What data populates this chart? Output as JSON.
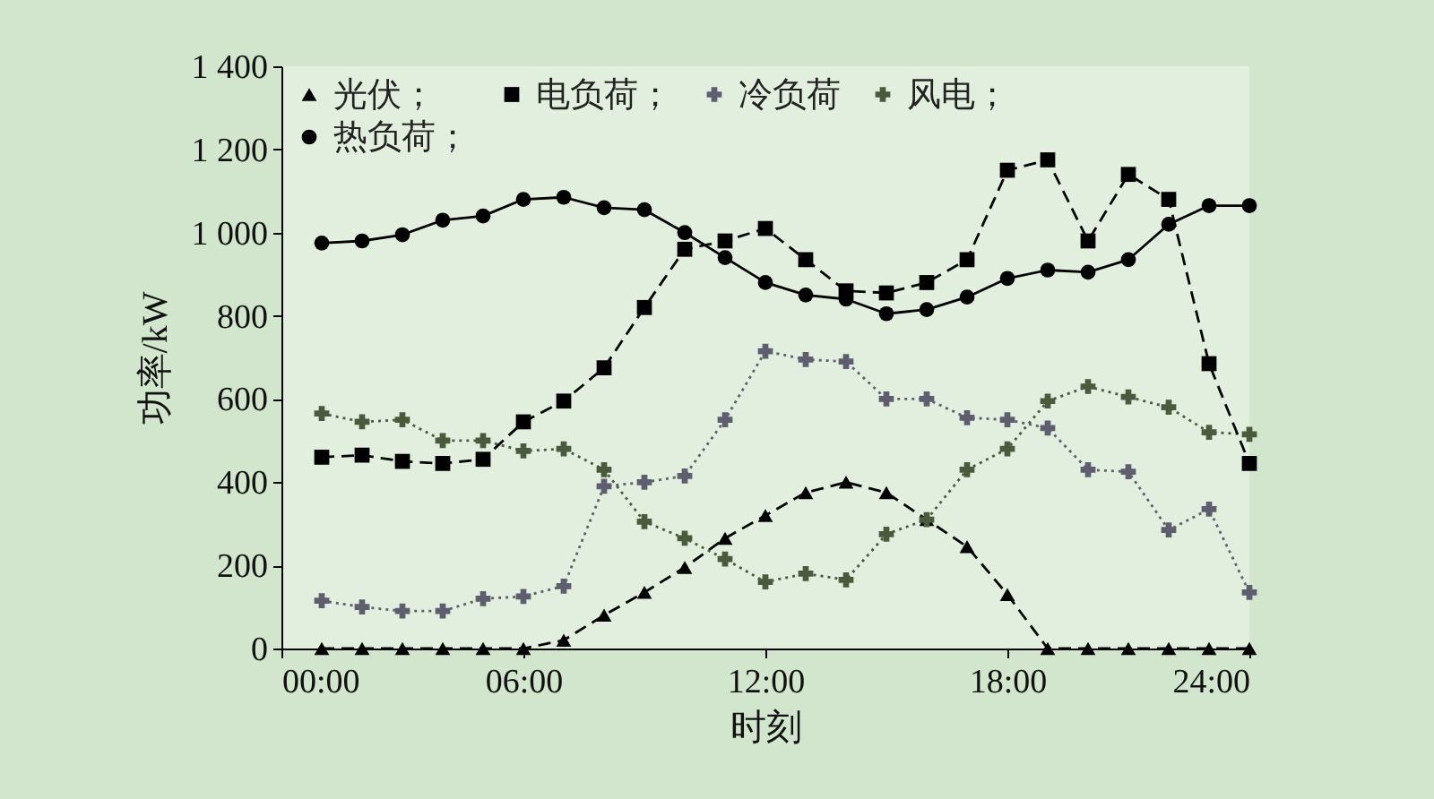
{
  "chart_data": {
    "type": "line",
    "xlabel": "时刻",
    "ylabel": "功率/kW",
    "x": [
      1,
      2,
      3,
      4,
      5,
      6,
      7,
      8,
      9,
      10,
      11,
      12,
      13,
      14,
      15,
      16,
      17,
      18,
      19,
      20,
      21,
      22,
      23,
      24
    ],
    "xlim": [
      0,
      24
    ],
    "xticks": [
      {
        "value": 0,
        "label": "00:00"
      },
      {
        "value": 6,
        "label": "06:00"
      },
      {
        "value": 12,
        "label": "12:00"
      },
      {
        "value": 18,
        "label": "18:00"
      },
      {
        "value": 24,
        "label": "24:00"
      }
    ],
    "ylim": [
      0,
      1400
    ],
    "yticks": [
      0,
      200,
      400,
      600,
      800,
      {
        "value": 1000,
        "label": "1 000"
      },
      {
        "value": 1200,
        "label": "1 200"
      },
      {
        "value": 1400,
        "label": "1 400"
      }
    ],
    "grid": false,
    "legend": "top left",
    "series": [
      {
        "name": "光伏；",
        "color": "#000000",
        "marker": "triangle",
        "line_style": "dashed",
        "values": [
          0,
          0,
          0,
          0,
          0,
          0,
          20,
          80,
          135,
          195,
          265,
          320,
          375,
          400,
          375,
          310,
          245,
          130,
          0,
          0,
          0,
          0,
          0,
          0
        ]
      },
      {
        "name": "风电；",
        "color": "#4a5a3c",
        "marker": "cross",
        "line_style": "dotted",
        "values": [
          565,
          545,
          550,
          500,
          500,
          475,
          480,
          430,
          305,
          265,
          215,
          160,
          180,
          165,
          275,
          310,
          430,
          480,
          595,
          630,
          605,
          580,
          520,
          515
        ]
      },
      {
        "name": "电负荷；",
        "color": "#000000",
        "marker": "square",
        "line_style": "dashed",
        "values": [
          460,
          465,
          450,
          445,
          455,
          545,
          595,
          675,
          820,
          960,
          980,
          1010,
          935,
          860,
          855,
          880,
          935,
          1150,
          1175,
          980,
          1140,
          1080,
          685,
          445
        ]
      },
      {
        "name": "热负荷；",
        "color": "#000000",
        "marker": "circle",
        "line_style": "solid",
        "values": [
          975,
          980,
          995,
          1030,
          1040,
          1080,
          1085,
          1060,
          1055,
          1000,
          940,
          880,
          850,
          840,
          805,
          815,
          845,
          890,
          910,
          905,
          935,
          1020,
          1065,
          1065
        ]
      },
      {
        "name": "冷负荷",
        "color": "#5e5e6e",
        "marker": "cross",
        "line_style": "dotted",
        "values": [
          115,
          100,
          90,
          90,
          120,
          125,
          150,
          390,
          400,
          415,
          550,
          715,
          695,
          690,
          600,
          600,
          555,
          550,
          530,
          430,
          425,
          285,
          335,
          135
        ]
      }
    ]
  }
}
